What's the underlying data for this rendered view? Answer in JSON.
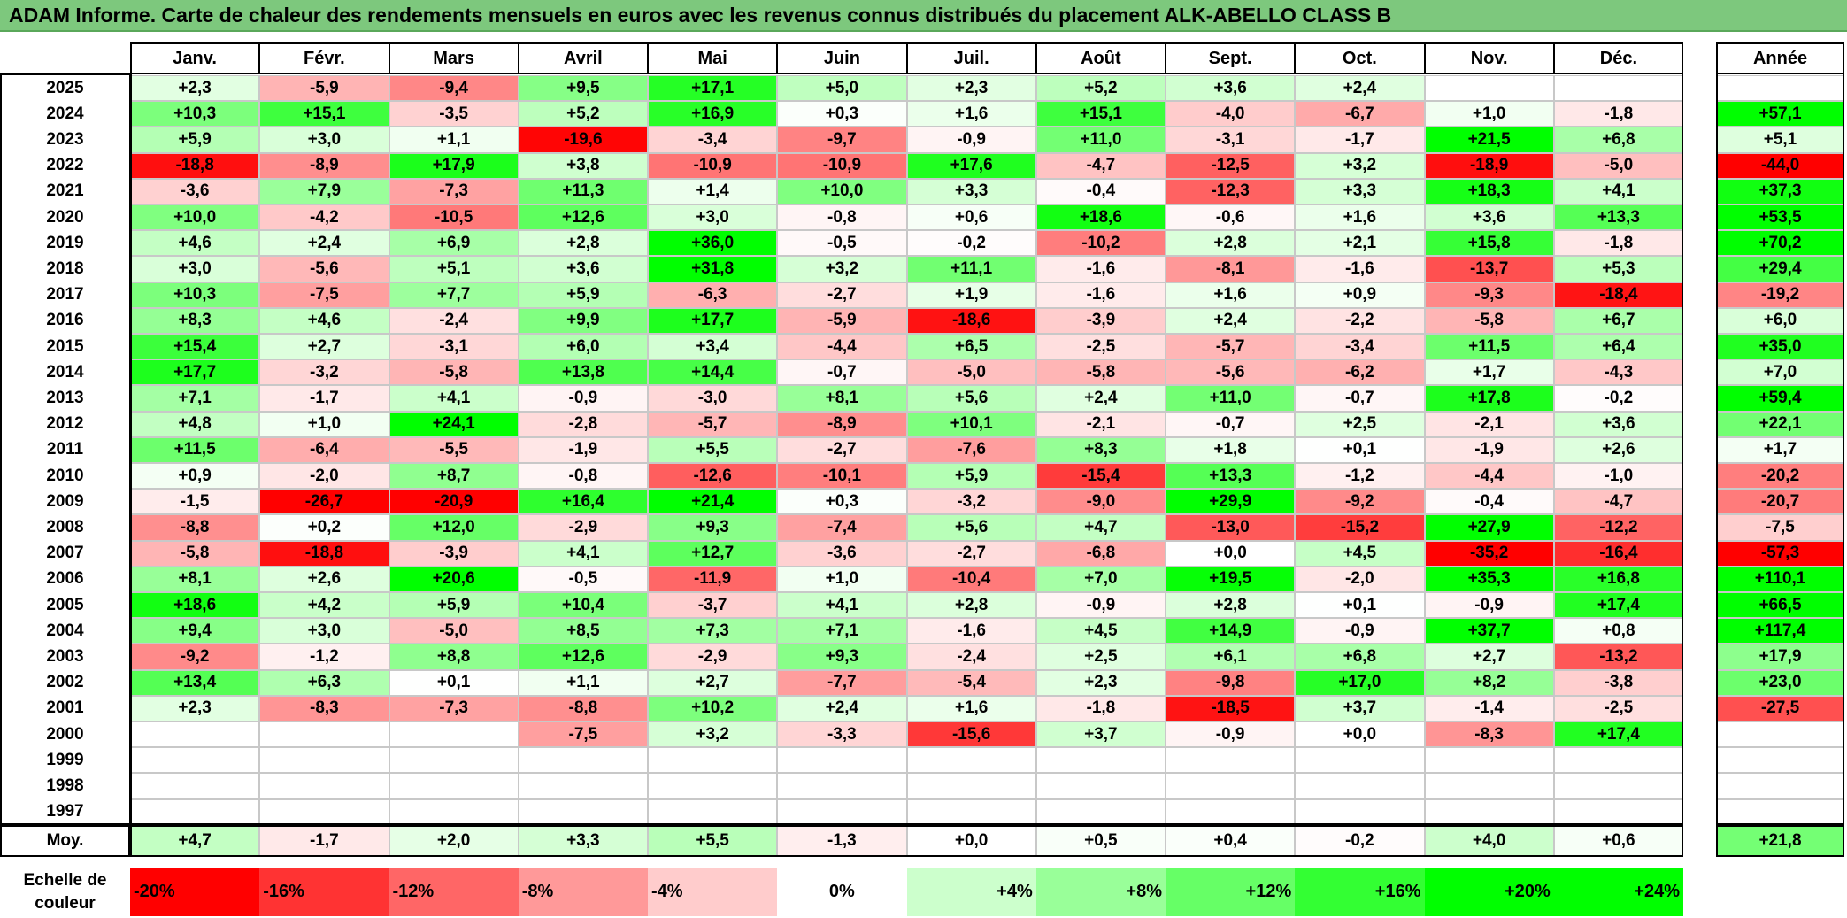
{
  "title": "ADAM Informe. Carte de chaleur des rendements mensuels en euros avec les revenus connus distribués du placement ALK-ABELLO CLASS B",
  "chart_data": {
    "type": "heatmap",
    "months": [
      "Janv.",
      "Févr.",
      "Mars",
      "Avril",
      "Mai",
      "Juin",
      "Juil.",
      "Août",
      "Sept.",
      "Oct.",
      "Nov.",
      "Déc."
    ],
    "annual_header": "Année",
    "rows": [
      {
        "year": "2025",
        "values": [
          "+2,3",
          "-5,9",
          "-9,4",
          "+9,5",
          "+17,1",
          "+5,0",
          "+2,3",
          "+5,2",
          "+3,6",
          "+2,4",
          "",
          ""
        ],
        "annual": ""
      },
      {
        "year": "2024",
        "values": [
          "+10,3",
          "+15,1",
          "-3,5",
          "+5,2",
          "+16,9",
          "+0,3",
          "+1,6",
          "+15,1",
          "-4,0",
          "-6,7",
          "+1,0",
          "-1,8"
        ],
        "annual": "+57,1"
      },
      {
        "year": "2023",
        "values": [
          "+5,9",
          "+3,0",
          "+1,1",
          "-19,6",
          "-3,4",
          "-9,7",
          "-0,9",
          "+11,0",
          "-3,1",
          "-1,7",
          "+21,5",
          "+6,8"
        ],
        "annual": "+5,1"
      },
      {
        "year": "2022",
        "values": [
          "-18,8",
          "-8,9",
          "+17,9",
          "+3,8",
          "-10,9",
          "-10,9",
          "+17,6",
          "-4,7",
          "-12,5",
          "+3,2",
          "-18,9",
          "-5,0"
        ],
        "annual": "-44,0"
      },
      {
        "year": "2021",
        "values": [
          "-3,6",
          "+7,9",
          "-7,3",
          "+11,3",
          "+1,4",
          "+10,0",
          "+3,3",
          "-0,4",
          "-12,3",
          "+3,3",
          "+18,3",
          "+4,1"
        ],
        "annual": "+37,3"
      },
      {
        "year": "2020",
        "values": [
          "+10,0",
          "-4,2",
          "-10,5",
          "+12,6",
          "+3,0",
          "-0,8",
          "+0,6",
          "+18,6",
          "-0,6",
          "+1,6",
          "+3,6",
          "+13,3"
        ],
        "annual": "+53,5"
      },
      {
        "year": "2019",
        "values": [
          "+4,6",
          "+2,4",
          "+6,9",
          "+2,8",
          "+36,0",
          "-0,5",
          "-0,2",
          "-10,2",
          "+2,8",
          "+2,1",
          "+15,8",
          "-1,8"
        ],
        "annual": "+70,2"
      },
      {
        "year": "2018",
        "values": [
          "+3,0",
          "-5,6",
          "+5,1",
          "+3,6",
          "+31,8",
          "+3,2",
          "+11,1",
          "-1,6",
          "-8,1",
          "-1,6",
          "-13,7",
          "+5,3"
        ],
        "annual": "+29,4"
      },
      {
        "year": "2017",
        "values": [
          "+10,3",
          "-7,5",
          "+7,7",
          "+5,9",
          "-6,3",
          "-2,7",
          "+1,9",
          "-1,6",
          "+1,6",
          "+0,9",
          "-9,3",
          "-18,4"
        ],
        "annual": "-19,2"
      },
      {
        "year": "2016",
        "values": [
          "+8,3",
          "+4,6",
          "-2,4",
          "+9,9",
          "+17,7",
          "-5,9",
          "-18,6",
          "-3,9",
          "+2,4",
          "-2,2",
          "-5,8",
          "+6,7"
        ],
        "annual": "+6,0"
      },
      {
        "year": "2015",
        "values": [
          "+15,4",
          "+2,7",
          "-3,1",
          "+6,0",
          "+3,4",
          "-4,4",
          "+6,5",
          "-2,5",
          "-5,7",
          "-3,4",
          "+11,5",
          "+6,4"
        ],
        "annual": "+35,0"
      },
      {
        "year": "2014",
        "values": [
          "+17,7",
          "-3,2",
          "-5,8",
          "+13,8",
          "+14,4",
          "-0,7",
          "-5,0",
          "-5,8",
          "-5,6",
          "-6,2",
          "+1,7",
          "-4,3"
        ],
        "annual": "+7,0"
      },
      {
        "year": "2013",
        "values": [
          "+7,1",
          "-1,7",
          "+4,1",
          "-0,9",
          "-3,0",
          "+8,1",
          "+5,6",
          "+2,4",
          "+11,0",
          "-0,7",
          "+17,8",
          "-0,2"
        ],
        "annual": "+59,4"
      },
      {
        "year": "2012",
        "values": [
          "+4,8",
          "+1,0",
          "+24,1",
          "-2,8",
          "-5,7",
          "-8,9",
          "+10,1",
          "-2,1",
          "-0,7",
          "+2,5",
          "-2,1",
          "+3,6"
        ],
        "annual": "+22,1"
      },
      {
        "year": "2011",
        "values": [
          "+11,5",
          "-6,4",
          "-5,5",
          "-1,9",
          "+5,5",
          "-2,7",
          "-7,6",
          "+8,3",
          "+1,8",
          "+0,1",
          "-1,9",
          "+2,6"
        ],
        "annual": "+1,7"
      },
      {
        "year": "2010",
        "values": [
          "+0,9",
          "-2,0",
          "+8,7",
          "-0,8",
          "-12,6",
          "-10,1",
          "+5,9",
          "-15,4",
          "+13,3",
          "-1,2",
          "-4,4",
          "-1,0"
        ],
        "annual": "-20,2"
      },
      {
        "year": "2009",
        "values": [
          "-1,5",
          "-26,7",
          "-20,9",
          "+16,4",
          "+21,4",
          "+0,3",
          "-3,2",
          "-9,0",
          "+29,9",
          "-9,2",
          "-0,4",
          "-4,7"
        ],
        "annual": "-20,7"
      },
      {
        "year": "2008",
        "values": [
          "-8,8",
          "+0,2",
          "+12,0",
          "-2,9",
          "+9,3",
          "-7,4",
          "+5,6",
          "+4,7",
          "-13,0",
          "-15,2",
          "+27,9",
          "-12,2"
        ],
        "annual": "-7,5"
      },
      {
        "year": "2007",
        "values": [
          "-5,8",
          "-18,8",
          "-3,9",
          "+4,1",
          "+12,7",
          "-3,6",
          "-2,7",
          "-6,8",
          "+0,0",
          "+4,5",
          "-35,2",
          "-16,4"
        ],
        "annual": "-57,3"
      },
      {
        "year": "2006",
        "values": [
          "+8,1",
          "+2,6",
          "+20,6",
          "-0,5",
          "-11,9",
          "+1,0",
          "-10,4",
          "+7,0",
          "+19,5",
          "-2,0",
          "+35,3",
          "+16,8"
        ],
        "annual": "+110,1"
      },
      {
        "year": "2005",
        "values": [
          "+18,6",
          "+4,2",
          "+5,9",
          "+10,4",
          "-3,7",
          "+4,1",
          "+2,8",
          "-0,9",
          "+2,8",
          "+0,1",
          "-0,9",
          "+17,4"
        ],
        "annual": "+66,5"
      },
      {
        "year": "2004",
        "values": [
          "+9,4",
          "+3,0",
          "-5,0",
          "+8,5",
          "+7,3",
          "+7,1",
          "-1,6",
          "+4,5",
          "+14,9",
          "-0,9",
          "+37,7",
          "+0,8"
        ],
        "annual": "+117,4"
      },
      {
        "year": "2003",
        "values": [
          "-9,2",
          "-1,2",
          "+8,8",
          "+12,6",
          "-2,9",
          "+9,3",
          "-2,4",
          "+2,5",
          "+6,1",
          "+6,8",
          "+2,7",
          "-13,2"
        ],
        "annual": "+17,9"
      },
      {
        "year": "2002",
        "values": [
          "+13,4",
          "+6,3",
          "+0,1",
          "+1,1",
          "+2,7",
          "-7,7",
          "-5,4",
          "+2,3",
          "-9,8",
          "+17,0",
          "+8,2",
          "-3,8"
        ],
        "annual": "+23,0"
      },
      {
        "year": "2001",
        "values": [
          "+2,3",
          "-8,3",
          "-7,3",
          "-8,8",
          "+10,2",
          "+2,4",
          "+1,6",
          "-1,8",
          "-18,5",
          "+3,7",
          "-1,4",
          "-2,5"
        ],
        "annual": "-27,5"
      },
      {
        "year": "2000",
        "values": [
          "",
          "",
          "",
          "-7,5",
          "+3,2",
          "-3,3",
          "-15,6",
          "+3,7",
          "-0,9",
          "+0,0",
          "-8,3",
          "+17,4"
        ],
        "annual": ""
      },
      {
        "year": "1999",
        "values": [
          "",
          "",
          "",
          "",
          "",
          "",
          "",
          "",
          "",
          "",
          "",
          ""
        ],
        "annual": ""
      },
      {
        "year": "1998",
        "values": [
          "",
          "",
          "",
          "",
          "",
          "",
          "",
          "",
          "",
          "",
          "",
          ""
        ],
        "annual": ""
      },
      {
        "year": "1997",
        "values": [
          "",
          "",
          "",
          "",
          "",
          "",
          "",
          "",
          "",
          "",
          "",
          ""
        ],
        "annual": ""
      }
    ],
    "average_row": {
      "label": "Moy.",
      "values": [
        "+4,7",
        "-1,7",
        "+2,0",
        "+3,3",
        "+5,5",
        "-1,3",
        "+0,0",
        "+0,5",
        "+0,4",
        "-0,2",
        "+4,0",
        "+0,6"
      ],
      "annual": "+21,8"
    },
    "scale": {
      "label_line1": "Echelle de",
      "label_line2": "couleur",
      "steps": [
        "-20%",
        "-16%",
        "-12%",
        "-8%",
        "-4%",
        "0%",
        "+4%",
        "+8%",
        "+12%",
        "+16%",
        "+20%",
        "+24%"
      ]
    },
    "colors": {
      "negative": "#ff0000",
      "neutral": "#ffffff",
      "positive": "#00ff00",
      "title_bg": "#7dc87d"
    }
  }
}
